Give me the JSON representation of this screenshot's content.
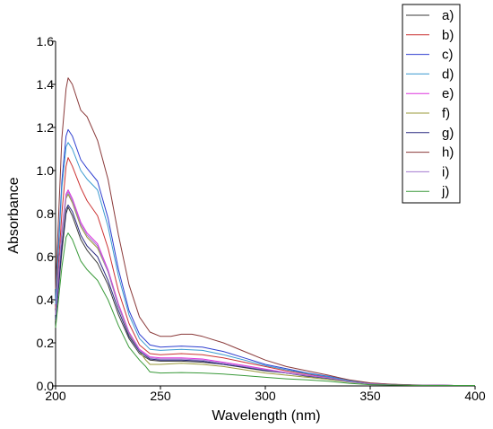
{
  "chart_data": {
    "type": "line",
    "title": "",
    "xlabel": "Wavelength (nm)",
    "ylabel": "Absorbance",
    "xlim": [
      200,
      400
    ],
    "ylim": [
      0,
      1.6
    ],
    "x_ticks": [
      "200",
      "250",
      "300",
      "350",
      "400"
    ],
    "y_ticks": [
      "0.0",
      "0.2",
      "0.4",
      "0.6",
      "0.8",
      "1.0",
      "1.2",
      "1.4",
      "1.6"
    ],
    "grid": false,
    "legend_position": "top-right",
    "series": [
      {
        "name": "a)",
        "color": "#3a3a3a",
        "points": [
          [
            200,
            0.3
          ],
          [
            203,
            0.62
          ],
          [
            205,
            0.8
          ],
          [
            206,
            0.83
          ],
          [
            208,
            0.79
          ],
          [
            212,
            0.68
          ],
          [
            215,
            0.63
          ],
          [
            220,
            0.57
          ],
          [
            225,
            0.47
          ],
          [
            230,
            0.33
          ],
          [
            235,
            0.22
          ],
          [
            240,
            0.15
          ],
          [
            245,
            0.12
          ],
          [
            250,
            0.115
          ],
          [
            260,
            0.115
          ],
          [
            270,
            0.11
          ],
          [
            280,
            0.1
          ],
          [
            290,
            0.085
          ],
          [
            300,
            0.07
          ],
          [
            310,
            0.06
          ],
          [
            320,
            0.045
          ],
          [
            330,
            0.035
          ],
          [
            340,
            0.02
          ],
          [
            350,
            0.01
          ],
          [
            360,
            0.006
          ],
          [
            370,
            0.004
          ],
          [
            380,
            0.003
          ],
          [
            390,
            0.002
          ],
          [
            400,
            0.002
          ]
        ]
      },
      {
        "name": "b)",
        "color": "#cc3333",
        "points": [
          [
            200,
            0.36
          ],
          [
            203,
            0.8
          ],
          [
            205,
            1.02
          ],
          [
            206,
            1.06
          ],
          [
            208,
            1.02
          ],
          [
            212,
            0.92
          ],
          [
            215,
            0.86
          ],
          [
            220,
            0.79
          ],
          [
            225,
            0.64
          ],
          [
            230,
            0.44
          ],
          [
            235,
            0.29
          ],
          [
            240,
            0.19
          ],
          [
            245,
            0.15
          ],
          [
            250,
            0.145
          ],
          [
            260,
            0.15
          ],
          [
            270,
            0.145
          ],
          [
            280,
            0.13
          ],
          [
            290,
            0.11
          ],
          [
            300,
            0.09
          ],
          [
            310,
            0.07
          ],
          [
            320,
            0.055
          ],
          [
            330,
            0.04
          ],
          [
            340,
            0.022
          ],
          [
            350,
            0.012
          ],
          [
            360,
            0.007
          ],
          [
            370,
            0.004
          ],
          [
            380,
            0.003
          ],
          [
            390,
            0.002
          ],
          [
            400,
            0.002
          ]
        ]
      },
      {
        "name": "c)",
        "color": "#2f3fd0",
        "points": [
          [
            200,
            0.4
          ],
          [
            203,
            0.95
          ],
          [
            205,
            1.16
          ],
          [
            206,
            1.19
          ],
          [
            208,
            1.16
          ],
          [
            212,
            1.05
          ],
          [
            215,
            1.01
          ],
          [
            220,
            0.95
          ],
          [
            225,
            0.78
          ],
          [
            230,
            0.54
          ],
          [
            235,
            0.35
          ],
          [
            240,
            0.24
          ],
          [
            245,
            0.19
          ],
          [
            250,
            0.18
          ],
          [
            260,
            0.185
          ],
          [
            270,
            0.18
          ],
          [
            280,
            0.16
          ],
          [
            290,
            0.13
          ],
          [
            300,
            0.1
          ],
          [
            310,
            0.08
          ],
          [
            320,
            0.06
          ],
          [
            330,
            0.045
          ],
          [
            340,
            0.025
          ],
          [
            350,
            0.013
          ],
          [
            360,
            0.007
          ],
          [
            370,
            0.004
          ],
          [
            380,
            0.003
          ],
          [
            390,
            0.002
          ],
          [
            400,
            0.002
          ]
        ]
      },
      {
        "name": "d)",
        "color": "#3a9ad0",
        "points": [
          [
            200,
            0.38
          ],
          [
            203,
            0.92
          ],
          [
            205,
            1.11
          ],
          [
            206,
            1.13
          ],
          [
            208,
            1.1
          ],
          [
            212,
            1.0
          ],
          [
            215,
            0.96
          ],
          [
            220,
            0.91
          ],
          [
            225,
            0.74
          ],
          [
            230,
            0.51
          ],
          [
            235,
            0.33
          ],
          [
            240,
            0.22
          ],
          [
            245,
            0.17
          ],
          [
            250,
            0.165
          ],
          [
            260,
            0.17
          ],
          [
            270,
            0.165
          ],
          [
            280,
            0.145
          ],
          [
            290,
            0.12
          ],
          [
            300,
            0.095
          ],
          [
            310,
            0.075
          ],
          [
            320,
            0.058
          ],
          [
            330,
            0.043
          ],
          [
            340,
            0.024
          ],
          [
            350,
            0.012
          ],
          [
            360,
            0.007
          ],
          [
            370,
            0.004
          ],
          [
            380,
            0.003
          ],
          [
            390,
            0.002
          ],
          [
            400,
            0.002
          ]
        ]
      },
      {
        "name": "e)",
        "color": "#dd33dd",
        "points": [
          [
            200,
            0.33
          ],
          [
            203,
            0.72
          ],
          [
            205,
            0.89
          ],
          [
            206,
            0.91
          ],
          [
            208,
            0.87
          ],
          [
            212,
            0.76
          ],
          [
            215,
            0.71
          ],
          [
            220,
            0.66
          ],
          [
            225,
            0.54
          ],
          [
            230,
            0.38
          ],
          [
            235,
            0.25
          ],
          [
            240,
            0.17
          ],
          [
            245,
            0.135
          ],
          [
            250,
            0.13
          ],
          [
            260,
            0.13
          ],
          [
            270,
            0.125
          ],
          [
            280,
            0.11
          ],
          [
            290,
            0.095
          ],
          [
            300,
            0.078
          ],
          [
            310,
            0.062
          ],
          [
            320,
            0.05
          ],
          [
            330,
            0.038
          ],
          [
            340,
            0.02
          ],
          [
            350,
            0.01
          ],
          [
            360,
            0.006
          ],
          [
            370,
            0.004
          ],
          [
            380,
            0.003
          ],
          [
            390,
            0.002
          ],
          [
            400,
            0.002
          ]
        ]
      },
      {
        "name": "f)",
        "color": "#9a9a3a",
        "points": [
          [
            200,
            0.33
          ],
          [
            203,
            0.7
          ],
          [
            205,
            0.87
          ],
          [
            206,
            0.89
          ],
          [
            208,
            0.85
          ],
          [
            212,
            0.74
          ],
          [
            215,
            0.69
          ],
          [
            220,
            0.64
          ],
          [
            225,
            0.53
          ],
          [
            230,
            0.37
          ],
          [
            235,
            0.24
          ],
          [
            240,
            0.16
          ],
          [
            243,
            0.12
          ],
          [
            245,
            0.1
          ],
          [
            250,
            0.1
          ],
          [
            260,
            0.105
          ],
          [
            270,
            0.1
          ],
          [
            280,
            0.09
          ],
          [
            290,
            0.075
          ],
          [
            300,
            0.06
          ],
          [
            310,
            0.05
          ],
          [
            320,
            0.04
          ],
          [
            330,
            0.03
          ],
          [
            340,
            0.018
          ],
          [
            350,
            0.009
          ],
          [
            360,
            0.005
          ],
          [
            370,
            0.003
          ],
          [
            380,
            0.002
          ],
          [
            390,
            0.002
          ],
          [
            400,
            0.002
          ]
        ]
      },
      {
        "name": "g)",
        "color": "#2a2a80",
        "points": [
          [
            200,
            0.31
          ],
          [
            203,
            0.65
          ],
          [
            205,
            0.82
          ],
          [
            206,
            0.84
          ],
          [
            208,
            0.81
          ],
          [
            212,
            0.7
          ],
          [
            215,
            0.65
          ],
          [
            220,
            0.6
          ],
          [
            225,
            0.49
          ],
          [
            230,
            0.35
          ],
          [
            235,
            0.23
          ],
          [
            240,
            0.16
          ],
          [
            245,
            0.125
          ],
          [
            250,
            0.12
          ],
          [
            260,
            0.12
          ],
          [
            270,
            0.115
          ],
          [
            280,
            0.1
          ],
          [
            290,
            0.088
          ],
          [
            300,
            0.072
          ],
          [
            310,
            0.06
          ],
          [
            320,
            0.047
          ],
          [
            330,
            0.035
          ],
          [
            340,
            0.02
          ],
          [
            350,
            0.01
          ],
          [
            360,
            0.006
          ],
          [
            370,
            0.004
          ],
          [
            380,
            0.003
          ],
          [
            390,
            0.002
          ],
          [
            400,
            0.002
          ]
        ]
      },
      {
        "name": "h)",
        "color": "#8a3a3a",
        "points": [
          [
            200,
            0.45
          ],
          [
            203,
            1.15
          ],
          [
            205,
            1.38
          ],
          [
            206,
            1.43
          ],
          [
            208,
            1.4
          ],
          [
            212,
            1.28
          ],
          [
            215,
            1.25
          ],
          [
            220,
            1.14
          ],
          [
            225,
            0.96
          ],
          [
            230,
            0.7
          ],
          [
            235,
            0.47
          ],
          [
            240,
            0.32
          ],
          [
            245,
            0.25
          ],
          [
            250,
            0.23
          ],
          [
            255,
            0.23
          ],
          [
            260,
            0.24
          ],
          [
            265,
            0.24
          ],
          [
            270,
            0.23
          ],
          [
            280,
            0.2
          ],
          [
            290,
            0.16
          ],
          [
            300,
            0.12
          ],
          [
            310,
            0.09
          ],
          [
            320,
            0.07
          ],
          [
            330,
            0.05
          ],
          [
            340,
            0.028
          ],
          [
            350,
            0.014
          ],
          [
            360,
            0.008
          ],
          [
            370,
            0.005
          ],
          [
            380,
            0.003
          ],
          [
            390,
            0.002
          ],
          [
            400,
            0.002
          ]
        ]
      },
      {
        "name": "i)",
        "color": "#a27ad0",
        "points": [
          [
            200,
            0.33
          ],
          [
            203,
            0.71
          ],
          [
            205,
            0.88
          ],
          [
            206,
            0.9
          ],
          [
            208,
            0.86
          ],
          [
            212,
            0.75
          ],
          [
            215,
            0.7
          ],
          [
            220,
            0.65
          ],
          [
            225,
            0.53
          ],
          [
            230,
            0.37
          ],
          [
            235,
            0.245
          ],
          [
            240,
            0.165
          ],
          [
            245,
            0.13
          ],
          [
            250,
            0.125
          ],
          [
            260,
            0.125
          ],
          [
            270,
            0.12
          ],
          [
            280,
            0.105
          ],
          [
            290,
            0.09
          ],
          [
            300,
            0.075
          ],
          [
            310,
            0.06
          ],
          [
            320,
            0.048
          ],
          [
            330,
            0.037
          ],
          [
            340,
            0.02
          ],
          [
            350,
            0.01
          ],
          [
            360,
            0.006
          ],
          [
            370,
            0.004
          ],
          [
            380,
            0.003
          ],
          [
            390,
            0.002
          ],
          [
            400,
            0.002
          ]
        ]
      },
      {
        "name": "j)",
        "color": "#3a9a3a",
        "points": [
          [
            200,
            0.27
          ],
          [
            203,
            0.55
          ],
          [
            205,
            0.69
          ],
          [
            206,
            0.71
          ],
          [
            208,
            0.68
          ],
          [
            212,
            0.58
          ],
          [
            215,
            0.54
          ],
          [
            220,
            0.49
          ],
          [
            225,
            0.4
          ],
          [
            230,
            0.28
          ],
          [
            235,
            0.18
          ],
          [
            240,
            0.12
          ],
          [
            243,
            0.09
          ],
          [
            245,
            0.065
          ],
          [
            250,
            0.06
          ],
          [
            260,
            0.062
          ],
          [
            270,
            0.06
          ],
          [
            280,
            0.055
          ],
          [
            290,
            0.048
          ],
          [
            300,
            0.04
          ],
          [
            310,
            0.033
          ],
          [
            320,
            0.028
          ],
          [
            330,
            0.022
          ],
          [
            340,
            0.012
          ],
          [
            350,
            0.006
          ],
          [
            360,
            0.004
          ],
          [
            370,
            0.003
          ],
          [
            380,
            0.002
          ],
          [
            390,
            0.002
          ],
          [
            400,
            0.002
          ]
        ]
      }
    ]
  }
}
